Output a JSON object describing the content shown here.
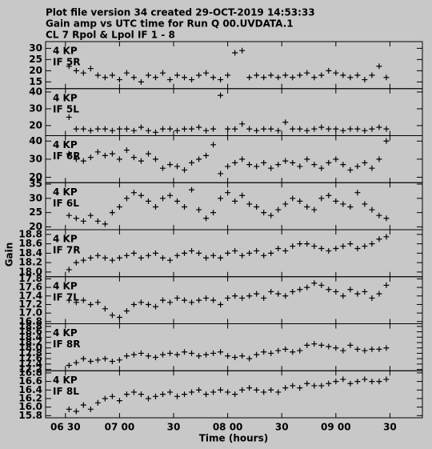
{
  "title_lines": [
    "Plot file version 34  created 29-OCT-2019 14:53:33",
    "Gain amp vs UTC time for Run Q 00.UVDATA.1",
    "CL 7  Rpol & Lpol  IF 1 - 8"
  ],
  "y_label": "Gain",
  "x_axis": {
    "label": "Time (hours)",
    "xlim": [
      379,
      588
    ],
    "xticks": [
      {
        "value": 390,
        "label": "06 30"
      },
      {
        "value": 420,
        "label": "07 00"
      },
      {
        "value": 450,
        "label": "30"
      },
      {
        "value": 480,
        "label": "08 00"
      },
      {
        "value": 510,
        "label": "30"
      },
      {
        "value": 540,
        "label": "09 00"
      },
      {
        "value": 570,
        "label": "30"
      }
    ]
  },
  "chart_data": [
    {
      "type": "scatter",
      "annotations": [
        "4 KP",
        "IF 5R"
      ],
      "color": "#000000",
      "ylim": [
        12,
        33
      ],
      "yticks": [
        15,
        20,
        25,
        30
      ],
      "x": [
        392,
        396,
        400,
        404,
        408,
        412,
        416,
        420,
        424,
        428,
        432,
        436,
        440,
        444,
        448,
        452,
        456,
        460,
        464,
        468,
        472,
        476,
        480,
        484,
        488,
        492,
        496,
        500,
        504,
        508,
        512,
        516,
        520,
        524,
        528,
        532,
        536,
        540,
        544,
        548,
        552,
        556,
        560,
        564,
        568
      ],
      "values": [
        22,
        20,
        19,
        21,
        18,
        17,
        18,
        16,
        19,
        17,
        15,
        18,
        17,
        19,
        16,
        18,
        17,
        16,
        18,
        19,
        17,
        16,
        18,
        28,
        29,
        17,
        18,
        17,
        18,
        17,
        18,
        17,
        18,
        19,
        17,
        18,
        20,
        19,
        18,
        17,
        18,
        16,
        18,
        22,
        17
      ]
    },
    {
      "type": "scatter",
      "annotations": [
        "4 KP",
        "IF 5L"
      ],
      "color": "#000000",
      "ylim": [
        14,
        42
      ],
      "yticks": [
        20,
        30,
        40
      ],
      "x": [
        392,
        396,
        400,
        404,
        408,
        412,
        416,
        420,
        424,
        428,
        432,
        436,
        440,
        444,
        448,
        452,
        456,
        460,
        464,
        468,
        472,
        476,
        480,
        484,
        488,
        492,
        496,
        500,
        504,
        508,
        512,
        516,
        520,
        524,
        528,
        532,
        536,
        540,
        544,
        548,
        552,
        556,
        560,
        564,
        568
      ],
      "values": [
        25,
        18,
        18,
        17,
        18,
        18,
        17,
        18,
        18,
        17,
        19,
        17,
        16,
        18,
        18,
        17,
        18,
        18,
        19,
        17,
        18,
        38,
        18,
        18,
        21,
        18,
        17,
        18,
        18,
        17,
        22,
        18,
        18,
        17,
        18,
        19,
        18,
        18,
        17,
        18,
        18,
        17,
        18,
        19,
        18
      ]
    },
    {
      "type": "scatter",
      "annotations": [
        "4 KP",
        "IF 6R"
      ],
      "color": "#000000",
      "ylim": [
        17,
        43
      ],
      "yticks": [
        20,
        30,
        40
      ],
      "x": [
        392,
        396,
        400,
        404,
        408,
        412,
        416,
        420,
        424,
        428,
        432,
        436,
        440,
        444,
        448,
        452,
        456,
        460,
        464,
        468,
        472,
        476,
        480,
        484,
        488,
        492,
        496,
        500,
        504,
        508,
        512,
        516,
        520,
        524,
        528,
        532,
        536,
        540,
        544,
        548,
        552,
        556,
        560,
        564,
        568
      ],
      "values": [
        33,
        30,
        29,
        31,
        34,
        32,
        33,
        30,
        35,
        31,
        29,
        33,
        30,
        25,
        27,
        26,
        24,
        28,
        30,
        32,
        38,
        22,
        26,
        28,
        30,
        27,
        26,
        28,
        25,
        27,
        29,
        28,
        26,
        30,
        27,
        25,
        28,
        30,
        27,
        24,
        26,
        28,
        25,
        30,
        40
      ]
    },
    {
      "type": "scatter",
      "annotations": [
        "4 KP",
        "IF 6L"
      ],
      "color": "#000000",
      "ylim": [
        19,
        35.5
      ],
      "yticks": [
        20,
        25,
        30,
        35
      ],
      "x": [
        392,
        396,
        400,
        404,
        408,
        412,
        416,
        420,
        424,
        428,
        432,
        436,
        440,
        444,
        448,
        452,
        456,
        460,
        464,
        468,
        472,
        476,
        480,
        484,
        488,
        492,
        496,
        500,
        504,
        508,
        512,
        516,
        520,
        524,
        528,
        532,
        536,
        540,
        544,
        548,
        552,
        556,
        560,
        564,
        568
      ],
      "values": [
        24,
        23,
        22,
        24,
        22,
        21,
        25,
        27,
        30,
        32,
        31,
        29,
        27,
        30,
        31,
        29,
        27,
        33,
        26,
        23,
        25,
        30,
        32,
        29,
        31,
        28,
        27,
        25,
        24,
        26,
        28,
        30,
        29,
        27,
        26,
        30,
        31,
        29,
        28,
        27,
        32,
        28,
        26,
        24,
        23
      ]
    },
    {
      "type": "scatter",
      "annotations": [
        "4 KP",
        "IF 7R"
      ],
      "color": "#000000",
      "ylim": [
        17.9,
        18.9
      ],
      "yticks": [
        {
          "value": 18,
          "label": "18.0"
        },
        18.2,
        18.4,
        18.6,
        18.8
      ],
      "x": [
        392,
        396,
        400,
        404,
        408,
        412,
        416,
        420,
        424,
        428,
        432,
        436,
        440,
        444,
        448,
        452,
        456,
        460,
        464,
        468,
        472,
        476,
        480,
        484,
        488,
        492,
        496,
        500,
        504,
        508,
        512,
        516,
        520,
        524,
        528,
        532,
        536,
        540,
        544,
        548,
        552,
        556,
        560,
        564,
        568
      ],
      "values": [
        18.05,
        18.2,
        18.25,
        18.3,
        18.35,
        18.3,
        18.25,
        18.3,
        18.35,
        18.4,
        18.3,
        18.35,
        18.4,
        18.3,
        18.25,
        18.35,
        18.4,
        18.45,
        18.4,
        18.3,
        18.35,
        18.3,
        18.4,
        18.45,
        18.35,
        18.4,
        18.45,
        18.35,
        18.4,
        18.5,
        18.45,
        18.55,
        18.6,
        18.6,
        18.55,
        18.5,
        18.45,
        18.5,
        18.55,
        18.6,
        18.5,
        18.55,
        18.6,
        18.7,
        18.75
      ]
    },
    {
      "type": "scatter",
      "annotations": [
        "4 KP",
        "IF 7L"
      ],
      "color": "#000000",
      "ylim": [
        16.75,
        17.85
      ],
      "yticks": [
        16.8,
        {
          "value": 17,
          "label": "17.0"
        },
        17.2,
        17.4,
        17.6,
        17.8
      ],
      "x": [
        392,
        396,
        400,
        404,
        408,
        412,
        416,
        420,
        424,
        428,
        432,
        436,
        440,
        444,
        448,
        452,
        456,
        460,
        464,
        468,
        472,
        476,
        480,
        484,
        488,
        492,
        496,
        500,
        504,
        508,
        512,
        516,
        520,
        524,
        528,
        532,
        536,
        540,
        544,
        548,
        552,
        556,
        560,
        564,
        568
      ],
      "values": [
        17.3,
        17.25,
        17.3,
        17.2,
        17.25,
        17.1,
        16.95,
        16.9,
        17.05,
        17.2,
        17.25,
        17.2,
        17.15,
        17.3,
        17.25,
        17.35,
        17.3,
        17.25,
        17.3,
        17.35,
        17.3,
        17.2,
        17.35,
        17.4,
        17.35,
        17.4,
        17.45,
        17.35,
        17.5,
        17.45,
        17.4,
        17.5,
        17.55,
        17.6,
        17.7,
        17.65,
        17.55,
        17.5,
        17.4,
        17.55,
        17.45,
        17.5,
        17.35,
        17.45,
        17.65
      ]
    },
    {
      "type": "scatter",
      "annotations": [
        "4 KP",
        "IF 8R"
      ],
      "color": "#000000",
      "ylim": [
        17.15,
        18.9
      ],
      "yticks": [
        17.2,
        17.4,
        17.6,
        17.8,
        {
          "value": 18,
          "label": "18.0"
        },
        18.2,
        18.4,
        18.6,
        18.8
      ],
      "x": [
        392,
        396,
        400,
        404,
        408,
        412,
        416,
        420,
        424,
        428,
        432,
        436,
        440,
        444,
        448,
        452,
        456,
        460,
        464,
        468,
        472,
        476,
        480,
        484,
        488,
        492,
        496,
        500,
        504,
        508,
        512,
        516,
        520,
        524,
        528,
        532,
        536,
        540,
        544,
        548,
        552,
        556,
        560,
        564,
        568
      ],
      "values": [
        17.35,
        17.45,
        17.6,
        17.5,
        17.55,
        17.6,
        17.5,
        17.55,
        17.7,
        17.75,
        17.8,
        17.7,
        17.65,
        17.75,
        17.8,
        17.75,
        17.85,
        17.8,
        17.7,
        17.75,
        17.8,
        17.85,
        17.7,
        17.65,
        17.7,
        17.6,
        17.75,
        17.85,
        17.8,
        17.9,
        17.95,
        17.85,
        17.9,
        18.1,
        18.15,
        18.1,
        18.05,
        18.0,
        17.9,
        18.1,
        17.95,
        17.9,
        17.95,
        17.95,
        18.0
      ]
    },
    {
      "type": "scatter",
      "annotations": [
        "4 KP",
        "IF 8L"
      ],
      "color": "#000000",
      "ylim": [
        15.75,
        16.85
      ],
      "yticks": [
        15.8,
        {
          "value": 16,
          "label": "16.0"
        },
        16.2,
        16.4,
        16.6,
        16.8
      ],
      "x": [
        392,
        396,
        400,
        404,
        408,
        412,
        416,
        420,
        424,
        428,
        432,
        436,
        440,
        444,
        448,
        452,
        456,
        460,
        464,
        468,
        472,
        476,
        480,
        484,
        488,
        492,
        496,
        500,
        504,
        508,
        512,
        516,
        520,
        524,
        528,
        532,
        536,
        540,
        544,
        548,
        552,
        556,
        560,
        564,
        568
      ],
      "values": [
        15.95,
        15.9,
        16.05,
        15.95,
        16.1,
        16.2,
        16.25,
        16.15,
        16.3,
        16.35,
        16.3,
        16.2,
        16.25,
        16.3,
        16.35,
        16.25,
        16.3,
        16.35,
        16.4,
        16.3,
        16.35,
        16.4,
        16.35,
        16.3,
        16.4,
        16.45,
        16.4,
        16.35,
        16.4,
        16.35,
        16.45,
        16.5,
        16.45,
        16.55,
        16.5,
        16.5,
        16.55,
        16.6,
        16.65,
        16.55,
        16.6,
        16.65,
        16.6,
        16.6,
        16.65
      ]
    }
  ]
}
